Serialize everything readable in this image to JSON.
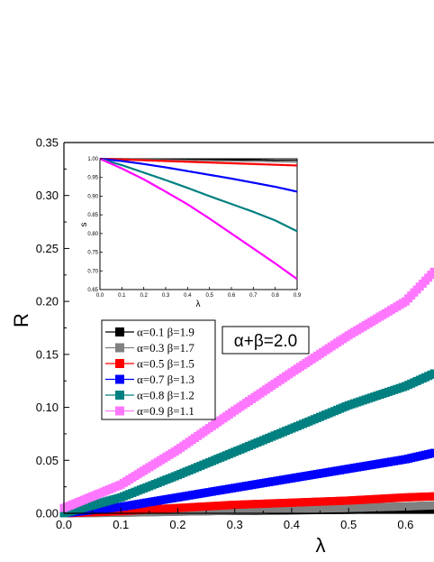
{
  "chart_data": [
    {
      "type": "scatter",
      "xlabel": "λ",
      "ylabel": "R",
      "xlim": [
        0.0,
        0.65
      ],
      "ylim": [
        0.0,
        0.35
      ],
      "xticks": [
        "0.0",
        "0.1",
        "0.2",
        "0.3",
        "0.4",
        "0.5",
        "0.6"
      ],
      "yticks": [
        "0.00",
        "0.05",
        "0.10",
        "0.15",
        "0.20",
        "0.25",
        "0.30",
        "0.35"
      ],
      "annotation": "α+β=2.0",
      "legend_position": "left-middle",
      "series": [
        {
          "name": "α=0.1 β=1.9",
          "color": "#000000",
          "x": [
            0.0,
            0.1,
            0.2,
            0.3,
            0.4,
            0.5,
            0.6,
            0.65
          ],
          "y": [
            0.0,
            0.0,
            0.0005,
            0.001,
            0.0015,
            0.002,
            0.003,
            0.003
          ]
        },
        {
          "name": "α=0.3 β=1.7",
          "color": "#808080",
          "x": [
            0.0,
            0.1,
            0.2,
            0.3,
            0.4,
            0.5,
            0.6,
            0.65
          ],
          "y": [
            0.0,
            0.0005,
            0.0015,
            0.0025,
            0.004,
            0.005,
            0.0065,
            0.0075
          ]
        },
        {
          "name": "α=0.5 β=1.5",
          "color": "#ff0000",
          "x": [
            0.0,
            0.1,
            0.2,
            0.3,
            0.4,
            0.5,
            0.6,
            0.65
          ],
          "y": [
            0.0,
            0.002,
            0.005,
            0.008,
            0.01,
            0.012,
            0.015,
            0.016
          ]
        },
        {
          "name": "α=0.7 β=1.3",
          "color": "#0000ff",
          "x": [
            0.0,
            0.1,
            0.2,
            0.3,
            0.4,
            0.5,
            0.6,
            0.65
          ],
          "y": [
            0.0,
            0.006,
            0.015,
            0.024,
            0.033,
            0.042,
            0.051,
            0.057
          ]
        },
        {
          "name": "α=0.8 β=1.2",
          "color": "#008080",
          "x": [
            0.0,
            0.1,
            0.2,
            0.3,
            0.4,
            0.5,
            0.6,
            0.65
          ],
          "y": [
            0.0,
            0.015,
            0.036,
            0.058,
            0.08,
            0.102,
            0.12,
            0.132
          ]
        },
        {
          "name": "α=0.9 β=1.1",
          "color": "#ff77ff",
          "x": [
            0.0,
            0.1,
            0.2,
            0.3,
            0.4,
            0.5,
            0.6,
            0.65
          ],
          "y": [
            0.005,
            0.027,
            0.06,
            0.097,
            0.133,
            0.168,
            0.2,
            0.228
          ]
        }
      ]
    },
    {
      "type": "line",
      "xlabel": "λ",
      "ylabel": "s",
      "xlim": [
        0.0,
        0.9
      ],
      "ylim": [
        0.65,
        1.0
      ],
      "xticks": [
        "0.0",
        "0.1",
        "0.2",
        "0.3",
        "0.4",
        "0.5",
        "0.6",
        "0.7",
        "0.8",
        "0.9"
      ],
      "yticks": [
        "0.65",
        "0.70",
        "0.75",
        "0.80",
        "0.85",
        "0.90",
        "0.95",
        "1.00"
      ],
      "series": [
        {
          "color": "#000000",
          "x": [
            0.0,
            0.1,
            0.2,
            0.3,
            0.4,
            0.5,
            0.6,
            0.7,
            0.8,
            0.9
          ],
          "y": [
            1.0,
            1.0,
            0.999,
            0.999,
            0.998,
            0.998,
            0.997,
            0.997,
            0.996,
            0.996
          ]
        },
        {
          "color": "#808080",
          "x": [
            0.0,
            0.1,
            0.2,
            0.3,
            0.4,
            0.5,
            0.6,
            0.7,
            0.8,
            0.9
          ],
          "y": [
            1.0,
            0.999,
            0.998,
            0.997,
            0.996,
            0.995,
            0.994,
            0.993,
            0.992,
            0.991
          ]
        },
        {
          "color": "#ff0000",
          "x": [
            0.0,
            0.1,
            0.2,
            0.3,
            0.4,
            0.5,
            0.6,
            0.7,
            0.8,
            0.9
          ],
          "y": [
            1.0,
            0.998,
            0.996,
            0.994,
            0.992,
            0.99,
            0.988,
            0.986,
            0.984,
            0.982
          ]
        },
        {
          "color": "#0000ff",
          "x": [
            0.0,
            0.1,
            0.2,
            0.3,
            0.4,
            0.5,
            0.6,
            0.7,
            0.8,
            0.9
          ],
          "y": [
            1.0,
            0.994,
            0.986,
            0.977,
            0.967,
            0.957,
            0.947,
            0.936,
            0.925,
            0.912
          ]
        },
        {
          "color": "#008080",
          "x": [
            0.0,
            0.1,
            0.2,
            0.3,
            0.4,
            0.5,
            0.6,
            0.7,
            0.8,
            0.9
          ],
          "y": [
            1.0,
            0.983,
            0.963,
            0.943,
            0.922,
            0.9,
            0.879,
            0.858,
            0.835,
            0.806
          ]
        },
        {
          "color": "#ff00ff",
          "x": [
            0.0,
            0.1,
            0.2,
            0.3,
            0.4,
            0.5,
            0.6,
            0.7,
            0.8,
            0.9
          ],
          "y": [
            1.0,
            0.974,
            0.945,
            0.912,
            0.878,
            0.84,
            0.8,
            0.76,
            0.72,
            0.678
          ]
        }
      ]
    }
  ]
}
